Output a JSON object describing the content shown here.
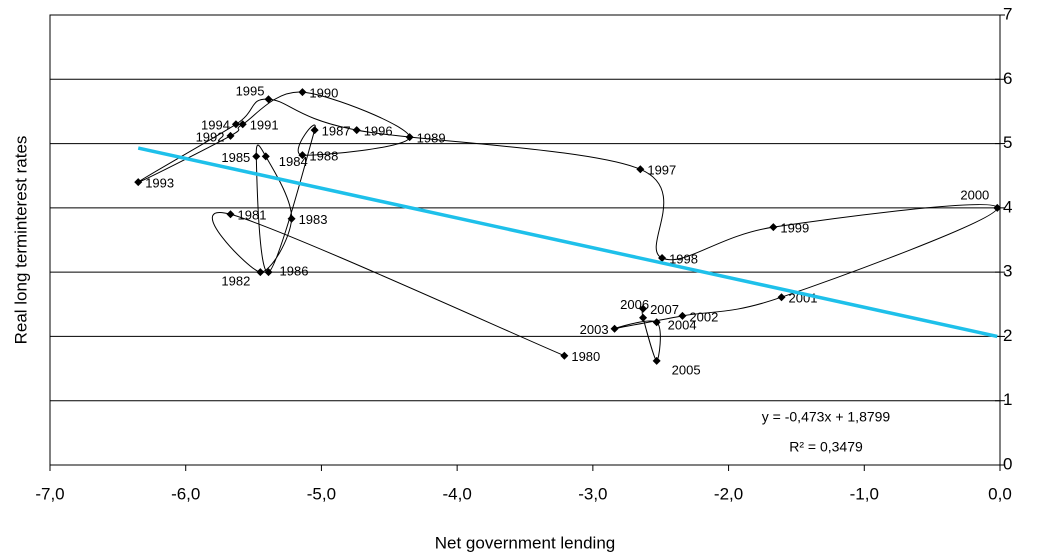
{
  "chart_data": {
    "type": "scatter",
    "x_label": "Net government lending",
    "y_label": "Real long terminterest rates",
    "xlim": [
      -7,
      0
    ],
    "xticks": [
      {
        "value": -7,
        "label": "-7,0"
      },
      {
        "value": -6,
        "label": "-6,0"
      },
      {
        "value": -5,
        "label": "-5,0"
      },
      {
        "value": -4,
        "label": "-4,0"
      },
      {
        "value": -3,
        "label": "-3,0"
      },
      {
        "value": -2,
        "label": "-2,0"
      },
      {
        "value": -1,
        "label": "-1,0"
      },
      {
        "value": 0,
        "label": "0,0"
      }
    ],
    "ylim": [
      0,
      7
    ],
    "yticks": [
      0,
      1,
      2,
      3,
      4,
      5,
      6,
      7
    ],
    "grid": true,
    "series": [
      {
        "color": "#000000",
        "labels": [
          "1980",
          "1981",
          "1982",
          "1983",
          "1984",
          "1985",
          "1986",
          "1987",
          "1988",
          "1989",
          "1990",
          "1991",
          "1992",
          "1993",
          "1994",
          "1995",
          "1996",
          "1997",
          "1998",
          "1999",
          "2000",
          "2001",
          "2002",
          "2003",
          "2004",
          "2005",
          "2006",
          "2007"
        ],
        "x": [
          -3.21,
          -5.67,
          -5.45,
          -5.22,
          -5.41,
          -5.48,
          -5.39,
          -5.05,
          -5.14,
          -4.35,
          -5.14,
          -5.58,
          -5.67,
          -6.35,
          -5.63,
          -5.39,
          -4.74,
          -2.65,
          -2.49,
          -1.67,
          -0.02,
          -1.61,
          -2.34,
          -2.84,
          -2.53,
          -2.53,
          -2.63,
          -2.63
        ],
        "values": [
          1.7,
          3.9,
          3.0,
          3.83,
          4.8,
          4.8,
          3.0,
          5.21,
          4.82,
          5.1,
          5.8,
          5.3,
          5.12,
          4.4,
          5.3,
          5.69,
          5.21,
          4.6,
          3.22,
          3.7,
          4.0,
          2.61,
          2.32,
          2.12,
          2.22,
          1.62,
          2.29,
          2.43
        ]
      }
    ],
    "trendline": {
      "color": "#1ec0ea",
      "x": [
        -6.35,
        -0.02
      ],
      "values": [
        4.93,
        2.0
      ]
    },
    "annotations": [
      "y = -0,473x + 1,8799",
      "R² = 0,3479"
    ]
  }
}
